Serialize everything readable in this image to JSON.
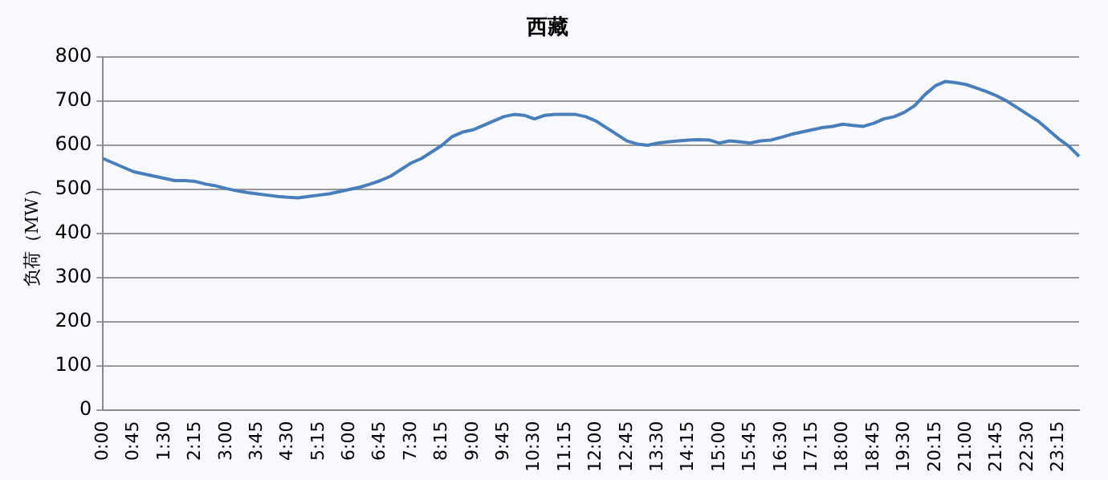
{
  "chart_data": {
    "type": "line",
    "title": "西藏",
    "ylabel": "负荷（MW）",
    "categories": [
      "0:00",
      null,
      null,
      "0:45",
      null,
      null,
      "1:30",
      null,
      null,
      "2:15",
      null,
      null,
      "3:00",
      null,
      null,
      "3:45",
      null,
      null,
      "4:30",
      null,
      null,
      "5:15",
      null,
      null,
      "6:00",
      null,
      null,
      "6:45",
      null,
      null,
      "7:30",
      null,
      null,
      "8:15",
      null,
      null,
      "9:00",
      null,
      null,
      "9:45",
      null,
      null,
      "10:30",
      null,
      null,
      "11:15",
      null,
      null,
      "12:00",
      null,
      null,
      "12:45",
      null,
      null,
      "13:30",
      null,
      null,
      "14:15",
      null,
      null,
      "15:00",
      null,
      null,
      "15:45",
      null,
      null,
      "16:30",
      null,
      null,
      "17:15",
      null,
      null,
      "18:00",
      null,
      null,
      "18:45",
      null,
      null,
      "19:30",
      null,
      null,
      "20:15",
      null,
      null,
      "21:00",
      null,
      null,
      "21:45",
      null,
      null,
      "22:30",
      null,
      null,
      "23:15",
      null,
      null
    ],
    "series": [
      {
        "color": "#4a7ebb",
        "values": [
          570,
          560,
          550,
          540,
          535,
          530,
          525,
          520,
          520,
          518,
          512,
          508,
          502,
          497,
          493,
          490,
          487,
          484,
          482,
          481,
          484,
          487,
          490,
          495,
          500,
          505,
          512,
          520,
          530,
          545,
          560,
          570,
          585,
          600,
          620,
          630,
          635,
          645,
          655,
          665,
          670,
          668,
          660,
          668,
          670,
          670,
          670,
          665,
          655,
          640,
          625,
          610,
          603,
          600,
          605,
          608,
          610,
          612,
          613,
          612,
          605,
          610,
          608,
          605,
          610,
          612,
          618,
          625,
          630,
          635,
          640,
          643,
          648,
          645,
          643,
          650,
          660,
          665,
          675,
          690,
          715,
          735,
          745,
          742,
          738,
          730,
          722,
          712,
          700,
          685,
          670,
          655,
          635,
          615,
          598,
          575
        ]
      }
    ],
    "ylim": [
      0,
      800
    ],
    "yticks": [
      0,
      100,
      200,
      300,
      400,
      500,
      600,
      700,
      800
    ],
    "grid": "y",
    "marker": "none",
    "line_style": "solid"
  }
}
